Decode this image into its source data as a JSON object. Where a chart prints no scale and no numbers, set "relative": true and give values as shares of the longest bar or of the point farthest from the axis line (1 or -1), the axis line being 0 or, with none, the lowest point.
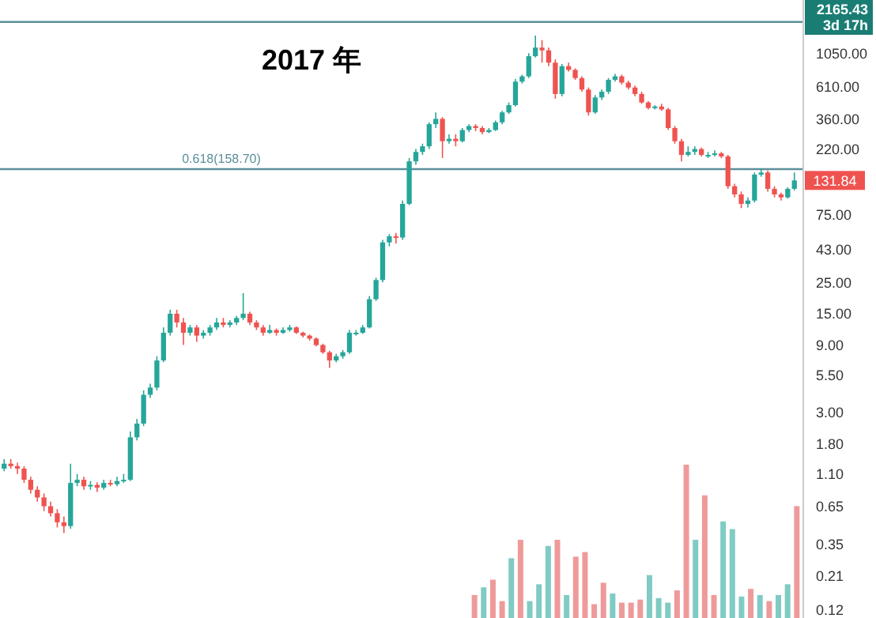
{
  "chart_data": [
    {
      "type": "candlestick",
      "title": "2017 年",
      "categories": [
        null,
        null,
        null,
        null,
        null,
        null,
        null,
        null,
        null,
        null,
        null,
        null,
        null,
        null,
        null,
        null,
        null,
        null,
        null,
        null,
        null,
        null,
        null,
        null,
        null,
        null,
        null,
        null,
        null,
        null,
        null,
        null,
        null,
        null,
        null,
        null,
        null,
        null,
        null,
        null,
        null,
        null,
        null,
        null,
        null,
        null,
        null,
        null,
        null,
        null,
        null,
        null,
        null,
        null,
        null,
        null,
        null,
        null,
        null,
        null,
        null,
        null,
        null,
        null,
        null,
        null,
        null,
        null,
        null,
        null,
        null,
        null,
        null,
        null,
        null,
        null,
        null,
        null,
        null,
        null,
        null,
        null,
        null,
        null,
        null,
        null,
        null,
        null,
        null,
        null,
        null,
        null,
        null,
        null,
        null,
        null,
        null,
        null,
        null,
        null,
        null,
        null,
        null,
        null,
        null,
        null,
        null,
        null,
        null,
        null,
        null,
        null,
        null,
        null,
        null,
        null,
        null,
        null,
        null,
        null
      ],
      "ohlc": [
        [
          1.2,
          1.4,
          1.15,
          1.3
        ],
        [
          1.3,
          1.4,
          1.2,
          1.25
        ],
        [
          1.25,
          1.32,
          1.1,
          1.2
        ],
        [
          1.2,
          1.25,
          0.95,
          1.0
        ],
        [
          1.0,
          1.05,
          0.8,
          0.85
        ],
        [
          0.85,
          0.9,
          0.7,
          0.75
        ],
        [
          0.75,
          0.8,
          0.6,
          0.65
        ],
        [
          0.65,
          0.7,
          0.55,
          0.58
        ],
        [
          0.58,
          0.62,
          0.46,
          0.5
        ],
        [
          0.5,
          0.55,
          0.42,
          0.47
        ],
        [
          0.47,
          1.3,
          0.45,
          0.95
        ],
        [
          0.95,
          1.1,
          0.9,
          1.0
        ],
        [
          1.0,
          1.05,
          0.85,
          0.9
        ],
        [
          0.9,
          0.98,
          0.85,
          0.92
        ],
        [
          0.92,
          0.96,
          0.82,
          0.88
        ],
        [
          0.88,
          1.0,
          0.85,
          0.95
        ],
        [
          0.95,
          1.0,
          0.9,
          0.93
        ],
        [
          0.93,
          1.05,
          0.9,
          0.98
        ],
        [
          0.98,
          1.1,
          0.95,
          1.0
        ],
        [
          1.0,
          2.2,
          0.98,
          2.0
        ],
        [
          2.0,
          2.7,
          1.9,
          2.5
        ],
        [
          2.5,
          4.3,
          2.4,
          4.0
        ],
        [
          4.0,
          4.8,
          3.8,
          4.5
        ],
        [
          4.5,
          7.5,
          4.3,
          7.0
        ],
        [
          7.0,
          12,
          6.8,
          11
        ],
        [
          11,
          16,
          10.5,
          15
        ],
        [
          15,
          16,
          12,
          13
        ],
        [
          13,
          14,
          9,
          11
        ],
        [
          11,
          12.5,
          10.5,
          12
        ],
        [
          12,
          12.5,
          9.5,
          10.5
        ],
        [
          10.5,
          11.5,
          10,
          11
        ],
        [
          11,
          12.5,
          10.5,
          12
        ],
        [
          12,
          14,
          11.5,
          13
        ],
        [
          13,
          14,
          12,
          12.5
        ],
        [
          12.5,
          13.5,
          12,
          13
        ],
        [
          13,
          14.5,
          12.5,
          14
        ],
        [
          14,
          21,
          13.5,
          15
        ],
        [
          15,
          15.5,
          12.5,
          13
        ],
        [
          13,
          13.5,
          11.5,
          12
        ],
        [
          12,
          12.5,
          10.5,
          11
        ],
        [
          11,
          12.5,
          10.8,
          11.5
        ],
        [
          11.5,
          11.8,
          10.5,
          11
        ],
        [
          11,
          12,
          10.8,
          11.5
        ],
        [
          11.5,
          12.5,
          11.2,
          12
        ],
        [
          12,
          12.2,
          10.8,
          11
        ],
        [
          11,
          11.2,
          10.2,
          10.5
        ],
        [
          10.5,
          10.7,
          9.7,
          10
        ],
        [
          10,
          10.2,
          8.8,
          9
        ],
        [
          9,
          9.2,
          7.8,
          8
        ],
        [
          8,
          8.2,
          6.2,
          7
        ],
        [
          7,
          7.8,
          6.8,
          7.5
        ],
        [
          7.5,
          8.3,
          7.2,
          8
        ],
        [
          8,
          11.5,
          7.8,
          11
        ],
        [
          11,
          11.5,
          10.5,
          11
        ],
        [
          11,
          12.5,
          10.8,
          12
        ],
        [
          12,
          20,
          11.8,
          19
        ],
        [
          19,
          27,
          18.5,
          26
        ],
        [
          26,
          50,
          25,
          48
        ],
        [
          48,
          55,
          45,
          53
        ],
        [
          53,
          56,
          47,
          52
        ],
        [
          52,
          95,
          50,
          90
        ],
        [
          90,
          190,
          88,
          180
        ],
        [
          180,
          220,
          170,
          210
        ],
        [
          210,
          240,
          200,
          230
        ],
        [
          230,
          340,
          220,
          330
        ],
        [
          330,
          400,
          310,
          360
        ],
        [
          360,
          370,
          190,
          250
        ],
        [
          250,
          280,
          240,
          260
        ],
        [
          260,
          280,
          230,
          250
        ],
        [
          250,
          310,
          245,
          300
        ],
        [
          300,
          330,
          290,
          320
        ],
        [
          320,
          330,
          295,
          310
        ],
        [
          310,
          320,
          280,
          290
        ],
        [
          290,
          310,
          285,
          300
        ],
        [
          300,
          350,
          295,
          340
        ],
        [
          340,
          410,
          330,
          400
        ],
        [
          400,
          470,
          390,
          450
        ],
        [
          450,
          690,
          440,
          660
        ],
        [
          660,
          740,
          640,
          720
        ],
        [
          720,
          1050,
          700,
          1000
        ],
        [
          1000,
          1400,
          980,
          1150
        ],
        [
          1150,
          1300,
          900,
          1100
        ],
        [
          1100,
          1150,
          850,
          900
        ],
        [
          900,
          950,
          500,
          540
        ],
        [
          540,
          880,
          520,
          850
        ],
        [
          850,
          900,
          780,
          800
        ],
        [
          800,
          820,
          680,
          700
        ],
        [
          700,
          720,
          560,
          580
        ],
        [
          580,
          600,
          380,
          400
        ],
        [
          400,
          530,
          390,
          510
        ],
        [
          510,
          580,
          490,
          560
        ],
        [
          560,
          700,
          540,
          680
        ],
        [
          680,
          750,
          660,
          720
        ],
        [
          720,
          740,
          630,
          650
        ],
        [
          650,
          670,
          580,
          600
        ],
        [
          600,
          620,
          520,
          540
        ],
        [
          540,
          560,
          460,
          470
        ],
        [
          470,
          480,
          420,
          430
        ],
        [
          430,
          450,
          420,
          440
        ],
        [
          440,
          460,
          410,
          420
        ],
        [
          420,
          430,
          300,
          310
        ],
        [
          310,
          320,
          240,
          250
        ],
        [
          250,
          260,
          180,
          200
        ],
        [
          200,
          230,
          195,
          210
        ],
        [
          210,
          230,
          200,
          220
        ],
        [
          220,
          225,
          195,
          200
        ],
        [
          200,
          210,
          190,
          200
        ],
        [
          200,
          215,
          195,
          205
        ],
        [
          205,
          210,
          190,
          195
        ],
        [
          195,
          200,
          115,
          120
        ],
        [
          120,
          125,
          100,
          105
        ],
        [
          105,
          110,
          84,
          90
        ],
        [
          90,
          100,
          85,
          95
        ],
        [
          95,
          150,
          92,
          145
        ],
        [
          145,
          160,
          140,
          150
        ],
        [
          150,
          155,
          110,
          115
        ],
        [
          115,
          120,
          100,
          105
        ],
        [
          105,
          108,
          95,
          100
        ],
        [
          100,
          118,
          98,
          115
        ],
        [
          115,
          150,
          112,
          131.84
        ]
      ],
      "log": true,
      "ylim": [
        0.105,
        2500
      ],
      "yticks": [
        {
          "value": 1050,
          "label": "1050.00"
        },
        {
          "value": 610,
          "label": "610.00"
        },
        {
          "value": 360,
          "label": "360.00"
        },
        {
          "value": 220,
          "label": "220.00"
        },
        {
          "value": 75,
          "label": "75.00"
        },
        {
          "value": 43,
          "label": "43.00"
        },
        {
          "value": 25,
          "label": "25.00"
        },
        {
          "value": 15,
          "label": "15.00"
        },
        {
          "value": 9,
          "label": "9.00"
        },
        {
          "value": 5.5,
          "label": "5.50"
        },
        {
          "value": 3,
          "label": "3.00"
        },
        {
          "value": 1.8,
          "label": "1.80"
        },
        {
          "value": 1.1,
          "label": "1.10"
        },
        {
          "value": 0.65,
          "label": "0.65"
        },
        {
          "value": 0.35,
          "label": "0.35"
        },
        {
          "value": 0.21,
          "label": "0.21"
        },
        {
          "value": 0.12,
          "label": "0.12"
        }
      ],
      "tick_labels": "y",
      "grid": false,
      "ref_lines": [
        {
          "axis": "y",
          "value": 158.7,
          "label": "0.618(158.70)",
          "color": "#5b8f9a"
        },
        {
          "axis": "y",
          "value": 1750,
          "color": "#5b8f9a"
        }
      ],
      "annotations": [
        "2165.43",
        "3d 17h",
        {
          "text": "131.84",
          "y": 131.84
        }
      ]
    },
    {
      "type": "bar",
      "relative": true,
      "categories": [
        null,
        null,
        null,
        null,
        null,
        null,
        null,
        null,
        null,
        null,
        null,
        null,
        null,
        null,
        null,
        null,
        null,
        null,
        null,
        null,
        null,
        null,
        null,
        null,
        null,
        null,
        null,
        null,
        null,
        null,
        null,
        null,
        null,
        null,
        null,
        null
      ],
      "values": [
        0.15,
        0.2,
        0.25,
        0.11,
        0.39,
        0.51,
        0.11,
        0.22,
        0.47,
        0.51,
        0.15,
        0.4,
        0.43,
        0.09,
        0.23,
        0.16,
        0.1,
        0.1,
        0.12,
        0.28,
        0.13,
        0.1,
        0.18,
        1,
        0.51,
        0.8,
        0.15,
        0.63,
        0.58,
        0.14,
        0.19,
        0.15,
        0.11,
        0.15,
        0.22,
        0.73
      ],
      "colors": [
        "#ef9a9a",
        "#80cbc4",
        "#ef9a9a",
        "#ef9a9a",
        "#80cbc4",
        "#ef9a9a",
        "#80cbc4",
        "#80cbc4",
        "#80cbc4",
        "#ef9a9a",
        "#80cbc4",
        "#ef9a9a",
        "#ef9a9a",
        "#ef9a9a",
        "#ef9a9a",
        "#80cbc4",
        "#ef9a9a",
        "#ef9a9a",
        "#ef9a9a",
        "#80cbc4",
        "#80cbc4",
        "#80cbc4",
        "#ef9a9a",
        "#ef9a9a",
        "#80cbc4",
        "#ef9a9a",
        "#ef9a9a",
        "#80cbc4",
        "#80cbc4",
        "#80cbc4",
        "#ef9a9a",
        "#80cbc4",
        "#ef9a9a",
        "#80cbc4",
        "#80cbc4",
        "#ef9a9a"
      ]
    }
  ]
}
